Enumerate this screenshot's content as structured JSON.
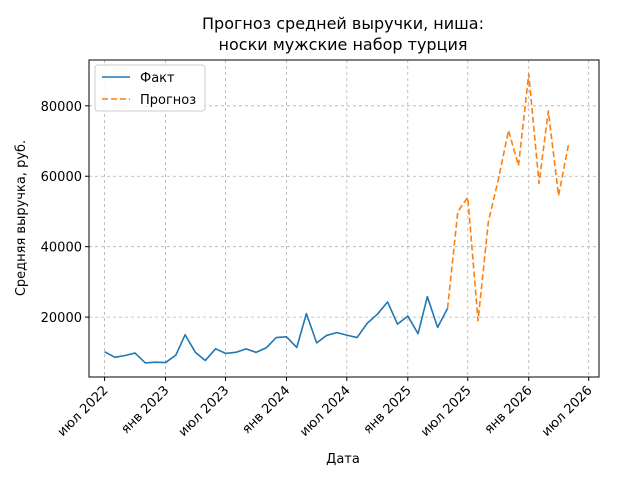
{
  "chart_data": {
    "type": "line",
    "title_line1": "Прогноз средней выручки, ниша:",
    "title_line2": "носки мужские набор турция",
    "xlabel": "Дата",
    "ylabel": "Средняя выручка, руб.",
    "x_ticks": [
      {
        "date": "2022-07-01",
        "label": "июл 2022"
      },
      {
        "date": "2023-01-01",
        "label": "янв 2023"
      },
      {
        "date": "2023-07-01",
        "label": "июл 2023"
      },
      {
        "date": "2024-01-01",
        "label": "янв 2024"
      },
      {
        "date": "2024-07-01",
        "label": "июл 2024"
      },
      {
        "date": "2025-01-01",
        "label": "янв 2025"
      },
      {
        "date": "2025-07-01",
        "label": "июл 2025"
      },
      {
        "date": "2026-01-01",
        "label": "янв 2026"
      },
      {
        "date": "2026-07-01",
        "label": "июл 2026"
      }
    ],
    "y_ticks": [
      {
        "value": 20000,
        "label": "20000"
      },
      {
        "value": 40000,
        "label": "40000"
      },
      {
        "value": 60000,
        "label": "60000"
      },
      {
        "value": 80000,
        "label": "80000"
      }
    ],
    "xlim": [
      "2022-05-15",
      "2026-08-01"
    ],
    "ylim": [
      3000,
      93000
    ],
    "grid": true,
    "legend_position": "top-left",
    "series": [
      {
        "name": "Факт",
        "color": "#1f77b4",
        "style": "solid",
        "points": [
          {
            "x": "2022-07-01",
            "y": 10200
          },
          {
            "x": "2022-08-01",
            "y": 8600
          },
          {
            "x": "2022-09-01",
            "y": 9100
          },
          {
            "x": "2022-10-01",
            "y": 9800
          },
          {
            "x": "2022-11-01",
            "y": 7000
          },
          {
            "x": "2022-12-01",
            "y": 7200
          },
          {
            "x": "2023-01-01",
            "y": 7100
          },
          {
            "x": "2023-02-01",
            "y": 9200
          },
          {
            "x": "2023-03-01",
            "y": 15000
          },
          {
            "x": "2023-04-01",
            "y": 10000
          },
          {
            "x": "2023-05-01",
            "y": 7700
          },
          {
            "x": "2023-06-01",
            "y": 11000
          },
          {
            "x": "2023-07-01",
            "y": 9700
          },
          {
            "x": "2023-08-01",
            "y": 10000
          },
          {
            "x": "2023-09-01",
            "y": 11000
          },
          {
            "x": "2023-10-01",
            "y": 10000
          },
          {
            "x": "2023-11-01",
            "y": 11300
          },
          {
            "x": "2023-12-01",
            "y": 14200
          },
          {
            "x": "2024-01-01",
            "y": 14400
          },
          {
            "x": "2024-02-01",
            "y": 11400
          },
          {
            "x": "2024-03-01",
            "y": 21000
          },
          {
            "x": "2024-04-01",
            "y": 12700
          },
          {
            "x": "2024-05-01",
            "y": 14800
          },
          {
            "x": "2024-06-01",
            "y": 15600
          },
          {
            "x": "2024-07-01",
            "y": 14900
          },
          {
            "x": "2024-08-01",
            "y": 14200
          },
          {
            "x": "2024-09-01",
            "y": 18300
          },
          {
            "x": "2024-10-01",
            "y": 20800
          },
          {
            "x": "2024-11-01",
            "y": 24300
          },
          {
            "x": "2024-12-01",
            "y": 18000
          },
          {
            "x": "2025-01-01",
            "y": 20300
          },
          {
            "x": "2025-02-01",
            "y": 15300
          },
          {
            "x": "2025-03-01",
            "y": 25800
          },
          {
            "x": "2025-04-01",
            "y": 17100
          },
          {
            "x": "2025-05-01",
            "y": 22500
          }
        ]
      },
      {
        "name": "Прогноз",
        "color": "#ff7f0e",
        "style": "dashed",
        "points": [
          {
            "x": "2025-05-01",
            "y": 22500
          },
          {
            "x": "2025-06-01",
            "y": 50000
          },
          {
            "x": "2025-07-01",
            "y": 54000
          },
          {
            "x": "2025-08-01",
            "y": 19000
          },
          {
            "x": "2025-09-01",
            "y": 47000
          },
          {
            "x": "2025-10-01",
            "y": 59000
          },
          {
            "x": "2025-11-01",
            "y": 73000
          },
          {
            "x": "2025-12-01",
            "y": 63000
          },
          {
            "x": "2026-01-01",
            "y": 89000
          },
          {
            "x": "2026-02-01",
            "y": 58000
          },
          {
            "x": "2026-03-01",
            "y": 78500
          },
          {
            "x": "2026-04-01",
            "y": 54500
          },
          {
            "x": "2026-05-01",
            "y": 69000
          }
        ]
      }
    ]
  }
}
